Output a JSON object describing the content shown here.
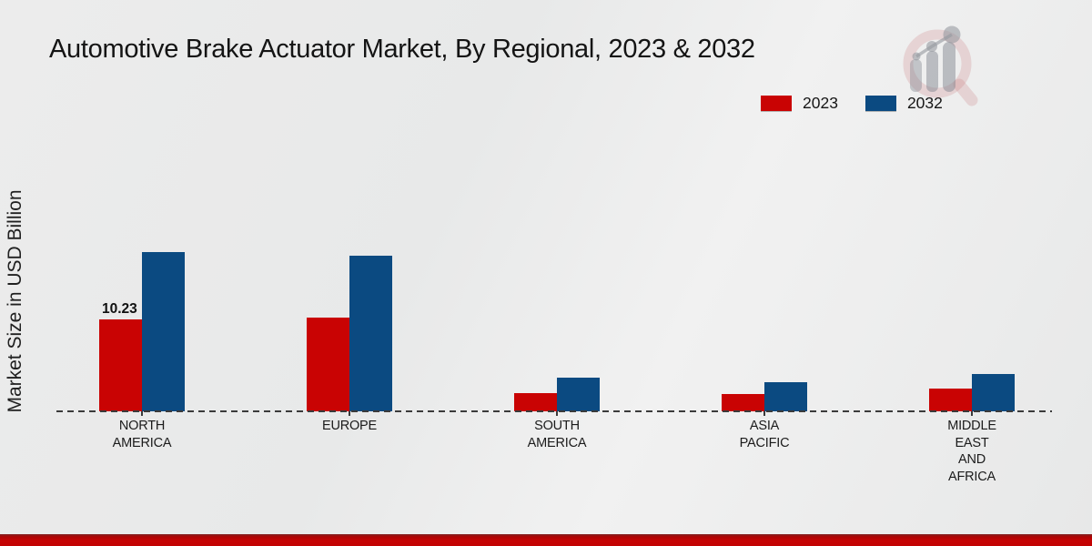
{
  "title": "Automotive Brake Actuator Market, By Regional, 2023 & 2032",
  "ylabel": "Market Size in USD Billion",
  "colors": {
    "series_2023": "#c90303",
    "series_2032": "#0b4a81",
    "footer": "#c20202",
    "axis": "#3b3b3b",
    "text": "#141414"
  },
  "legend": {
    "position": "top-right",
    "items": [
      {
        "label": "2023",
        "color": "#c90303"
      },
      {
        "label": "2032",
        "color": "#0b4a81"
      }
    ]
  },
  "chart_data": {
    "type": "bar",
    "title": "Automotive Brake Actuator Market, By Regional, 2023 & 2032",
    "xlabel": "",
    "ylabel": "Market Size in USD Billion",
    "grid": false,
    "baseline_style": "dashed",
    "legend_position": "top-right",
    "categories": [
      "NORTH AMERICA",
      "EUROPE",
      "SOUTH AMERICA",
      "ASIA PACIFIC",
      "MIDDLE EAST AND AFRICA"
    ],
    "category_label_lines": [
      [
        "NORTH",
        "AMERICA"
      ],
      [
        "EUROPE"
      ],
      [
        "SOUTH",
        "AMERICA"
      ],
      [
        "ASIA",
        "PACIFIC"
      ],
      [
        "MIDDLE",
        "EAST",
        "AND",
        "AFRICA"
      ]
    ],
    "series": [
      {
        "name": "2023",
        "color": "#c90303",
        "values": [
          10.23,
          10.4,
          2.0,
          1.9,
          2.5
        ]
      },
      {
        "name": "2032",
        "color": "#0b4a81",
        "values": [
          17.7,
          17.3,
          3.7,
          3.2,
          4.2
        ]
      }
    ],
    "data_labels": [
      {
        "series": "2023",
        "category": "NORTH AMERICA",
        "text": "10.23"
      }
    ]
  }
}
